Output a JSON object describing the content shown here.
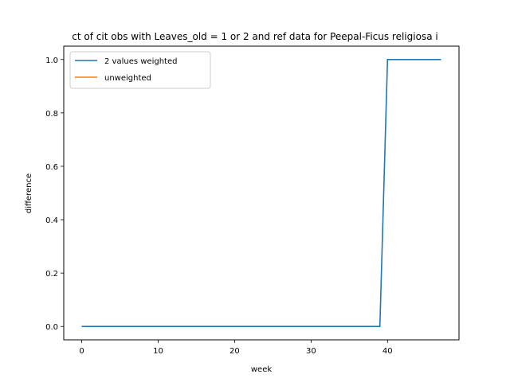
{
  "chart_data": {
    "type": "line",
    "title": "ct of cit obs with Leaves_old = 1 or 2 and ref data for Peepal-Ficus religiosa i",
    "xlabel": "week",
    "ylabel": "difference",
    "xlim": [
      -2.35,
      49.35
    ],
    "ylim": [
      -0.05,
      1.05
    ],
    "xticks": [
      0,
      10,
      20,
      30,
      40
    ],
    "yticks": [
      0.0,
      0.2,
      0.4,
      0.6,
      0.8,
      1.0
    ],
    "xtick_labels": [
      "0",
      "10",
      "20",
      "30",
      "40"
    ],
    "ytick_labels": [
      "0.0",
      "0.2",
      "0.4",
      "0.6",
      "0.8",
      "1.0"
    ],
    "grid": false,
    "legend_position": "top-left",
    "series": [
      {
        "name": "2 values weighted",
        "color": "#1f77b4",
        "x": [
          0,
          1,
          2,
          3,
          4,
          5,
          6,
          7,
          8,
          9,
          10,
          11,
          12,
          13,
          14,
          15,
          16,
          17,
          18,
          19,
          20,
          21,
          22,
          23,
          24,
          25,
          26,
          27,
          28,
          29,
          30,
          31,
          32,
          33,
          34,
          35,
          36,
          37,
          38,
          39,
          40,
          41,
          42,
          43,
          44,
          45,
          46,
          47
        ],
        "y": [
          0,
          0,
          0,
          0,
          0,
          0,
          0,
          0,
          0,
          0,
          0,
          0,
          0,
          0,
          0,
          0,
          0,
          0,
          0,
          0,
          0,
          0,
          0,
          0,
          0,
          0,
          0,
          0,
          0,
          0,
          0,
          0,
          0,
          0,
          0,
          0,
          0,
          0,
          0,
          0,
          1,
          1,
          1,
          1,
          1,
          1,
          1,
          1
        ]
      },
      {
        "name": "unweighted",
        "color": "#ff7f0e",
        "x": [],
        "y": []
      }
    ]
  }
}
